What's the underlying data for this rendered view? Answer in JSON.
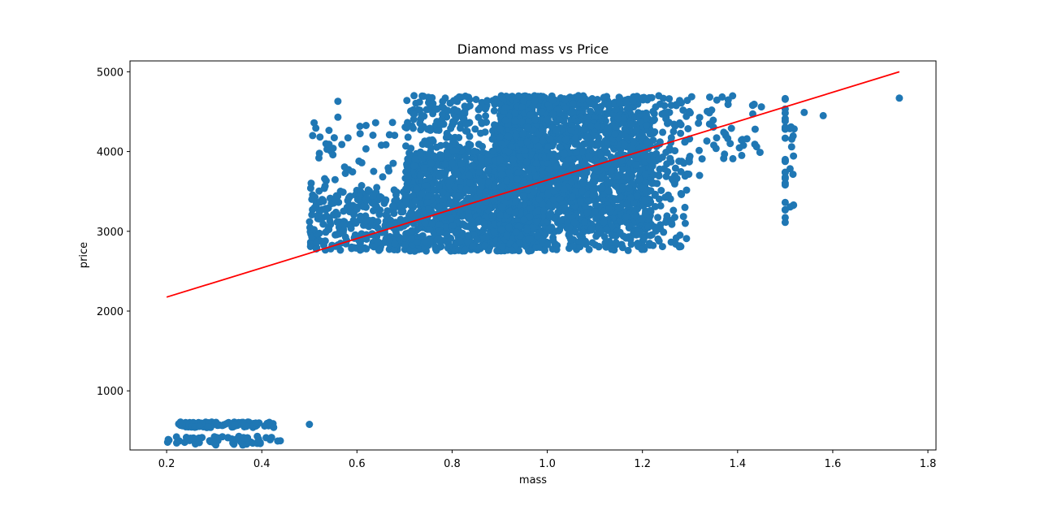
{
  "chart_data": {
    "type": "scatter",
    "title": "Diamond mass vs Price",
    "xlabel": "mass",
    "ylabel": "price",
    "xlim": [
      0.123,
      1.817
    ],
    "ylim": [
      259,
      5136
    ],
    "x_ticks": [
      0.2,
      0.4,
      0.6,
      0.8,
      1.0,
      1.2,
      1.4,
      1.6,
      1.8
    ],
    "x_tick_labels": [
      "0.2",
      "0.4",
      "0.6",
      "0.8",
      "1.0",
      "1.2",
      "1.4",
      "1.6",
      "1.8"
    ],
    "y_ticks": [
      1000,
      2000,
      3000,
      4000,
      5000
    ],
    "y_tick_labels": [
      "1000",
      "2000",
      "3000",
      "4000",
      "5000"
    ],
    "grid": false,
    "point_color": "#1f77b4",
    "regression_line": {
      "color": "#ff0000",
      "x": [
        0.2,
        1.74
      ],
      "y": [
        2175,
        5000
      ]
    },
    "point_clusters": [
      {
        "x": [
          0.2,
          0.44
        ],
        "y": [
          320,
          430
        ],
        "n": 60
      },
      {
        "x": [
          0.22,
          0.43
        ],
        "y": [
          540,
          610
        ],
        "n": 90
      },
      {
        "x": [
          0.5,
          0.5
        ],
        "y": [
          580,
          580
        ],
        "n": 1
      },
      {
        "x": [
          0.5,
          0.7
        ],
        "y": [
          2760,
          3520
        ],
        "n": 260
      },
      {
        "x": [
          0.5,
          0.68
        ],
        "y": [
          3500,
          4400
        ],
        "n": 45
      },
      {
        "x": [
          0.7,
          0.9
        ],
        "y": [
          2750,
          4000
        ],
        "n": 900
      },
      {
        "x": [
          0.7,
          0.9
        ],
        "y": [
          4000,
          4700
        ],
        "n": 160
      },
      {
        "x": [
          0.9,
          1.0
        ],
        "y": [
          2750,
          4700
        ],
        "n": 1100
      },
      {
        "x": [
          1.0,
          1.22
        ],
        "y": [
          3000,
          4700
        ],
        "n": 1200
      },
      {
        "x": [
          1.0,
          1.22
        ],
        "y": [
          2760,
          3000
        ],
        "n": 80
      },
      {
        "x": [
          1.22,
          1.3
        ],
        "y": [
          2800,
          4700
        ],
        "n": 130
      },
      {
        "x": [
          1.3,
          1.45
        ],
        "y": [
          3900,
          4700
        ],
        "n": 40
      },
      {
        "x": [
          1.5,
          1.5
        ],
        "y": [
          2950,
          4700
        ],
        "n": 25
      },
      {
        "x": [
          1.51,
          1.52
        ],
        "y": [
          3100,
          4650
        ],
        "n": 12
      }
    ],
    "extra_points": [
      {
        "x": 0.56,
        "y": 4630
      },
      {
        "x": 0.51,
        "y": 4360
      },
      {
        "x": 0.52,
        "y": 3920
      },
      {
        "x": 0.72,
        "y": 4700
      },
      {
        "x": 0.75,
        "y": 4680
      },
      {
        "x": 1.54,
        "y": 4490
      },
      {
        "x": 1.58,
        "y": 4450
      },
      {
        "x": 1.74,
        "y": 4670
      },
      {
        "x": 1.38,
        "y": 4590
      },
      {
        "x": 1.45,
        "y": 4560
      },
      {
        "x": 1.39,
        "y": 3910
      },
      {
        "x": 1.44,
        "y": 4060
      },
      {
        "x": 1.41,
        "y": 4150
      },
      {
        "x": 1.35,
        "y": 4080
      },
      {
        "x": 1.32,
        "y": 3700
      },
      {
        "x": 1.29,
        "y": 3100
      },
      {
        "x": 1.27,
        "y": 2840
      },
      {
        "x": 1.17,
        "y": 2760
      },
      {
        "x": 1.16,
        "y": 2940
      },
      {
        "x": 1.19,
        "y": 2850
      },
      {
        "x": 1.08,
        "y": 2870
      },
      {
        "x": 0.56,
        "y": 4430
      },
      {
        "x": 0.55,
        "y": 4040
      }
    ]
  }
}
